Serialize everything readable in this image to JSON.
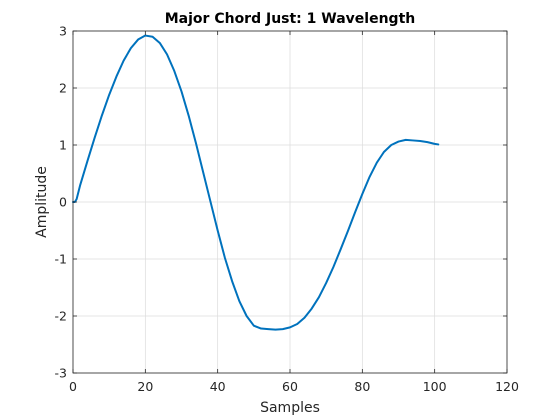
{
  "chart_data": {
    "type": "line",
    "title": "Major Chord Just: 1 Wavelength",
    "xlabel": "Samples",
    "ylabel": "Amplitude",
    "xlim": [
      0,
      120
    ],
    "ylim": [
      -3,
      3
    ],
    "xticks": [
      0,
      20,
      40,
      60,
      80,
      100,
      120
    ],
    "yticks": [
      -3,
      -2,
      -1,
      0,
      1,
      2,
      3
    ],
    "grid": true,
    "legend": "none",
    "series": [
      {
        "color": "#0072BD",
        "x": [
          0,
          0.5,
          1,
          2,
          4,
          6,
          8,
          10,
          12,
          14,
          16,
          18,
          20,
          22,
          24,
          26,
          28,
          30,
          32,
          34,
          36,
          38,
          40,
          42,
          44,
          46,
          48,
          50,
          52,
          54,
          56,
          58,
          60,
          62,
          64,
          66,
          68,
          70,
          72,
          74,
          76,
          78,
          80,
          82,
          84,
          86,
          88,
          90,
          92,
          94,
          96,
          98,
          100,
          101
        ],
        "y": [
          0.0,
          0.0,
          0.05,
          0.3,
          0.72,
          1.13,
          1.52,
          1.88,
          2.2,
          2.48,
          2.7,
          2.85,
          2.92,
          2.9,
          2.79,
          2.59,
          2.3,
          1.94,
          1.51,
          1.03,
          0.52,
          0.01,
          -0.5,
          -0.98,
          -1.39,
          -1.74,
          -2.0,
          -2.17,
          -2.22,
          -2.23,
          -2.24,
          -2.23,
          -2.2,
          -2.14,
          -2.03,
          -1.87,
          -1.67,
          -1.42,
          -1.14,
          -0.83,
          -0.51,
          -0.18,
          0.14,
          0.44,
          0.69,
          0.88,
          1.0,
          1.06,
          1.09,
          1.08,
          1.07,
          1.05,
          1.02,
          1.01
        ]
      }
    ]
  }
}
